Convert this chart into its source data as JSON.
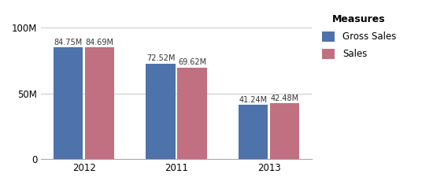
{
  "categories": [
    "2012",
    "2011",
    "2013"
  ],
  "gross_sales": [
    84.75,
    72.52,
    41.24
  ],
  "sales": [
    84.69,
    69.62,
    42.48
  ],
  "gross_sales_labels": [
    "84.75M",
    "72.52M",
    "41.24M"
  ],
  "sales_labels": [
    "84.69M",
    "69.62M",
    "42.48M"
  ],
  "bar_color_gross": "#4e72aa",
  "bar_color_sales": "#c07080",
  "ylim": [
    0,
    110
  ],
  "yticks": [
    0,
    50,
    100
  ],
  "ytick_labels": [
    "0",
    "50M",
    "100M"
  ],
  "legend_title": "Measures",
  "legend_label_gross": "Gross Sales",
  "legend_label_sales": "Sales",
  "bar_width": 0.32,
  "label_fontsize": 7.0,
  "tick_fontsize": 8.5,
  "legend_fontsize": 8.5,
  "background_color": "#ffffff",
  "grid_color": "#cccccc"
}
